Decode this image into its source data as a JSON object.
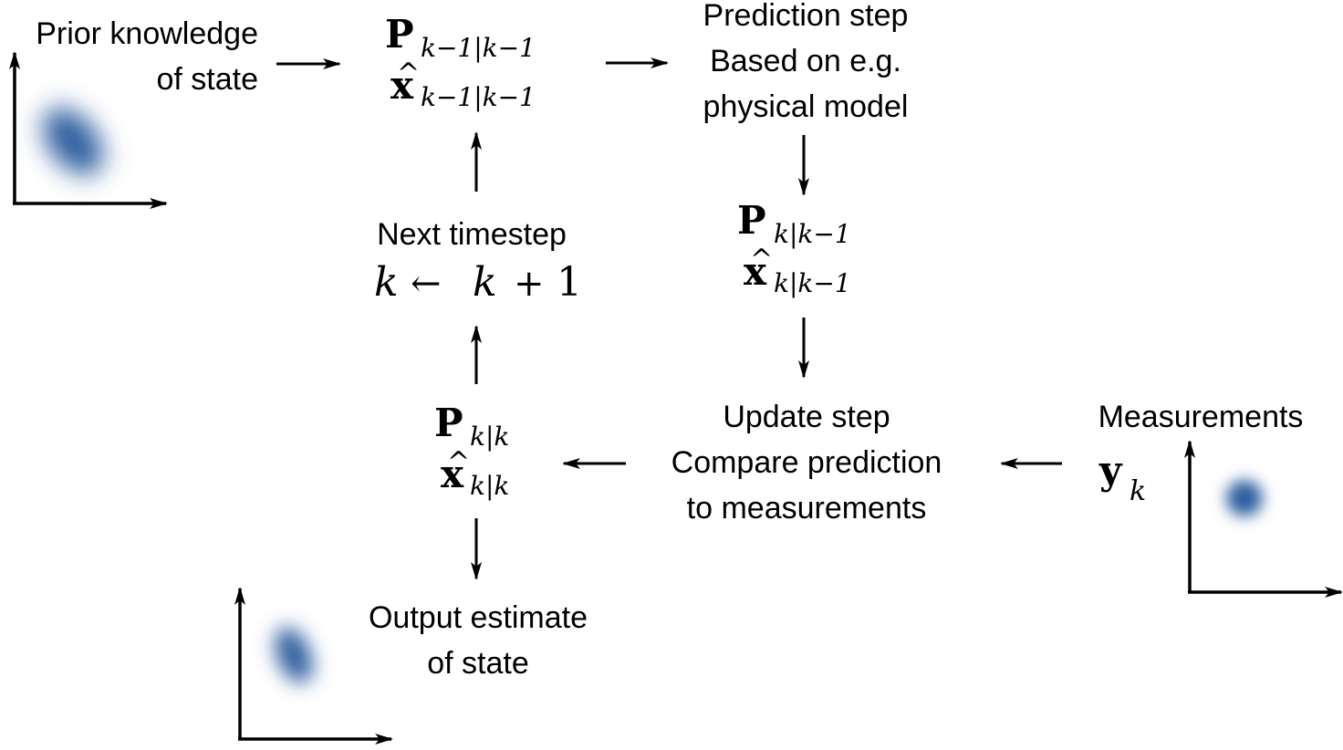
{
  "labels": {
    "prior_line1": "Prior knowledge",
    "prior_line2": "of state",
    "prediction_line1": "Prediction step",
    "prediction_line2": "Based on e.g.",
    "prediction_line3": "physical model",
    "next_line1": "Next timestep",
    "update_line1": "Update step",
    "update_line2": "Compare prediction",
    "update_line3": "to measurements",
    "measurements": "Measurements",
    "output_line1": "Output estimate",
    "output_line2": "of state"
  },
  "math": {
    "P": "P",
    "x": "x",
    "hat": "^",
    "y": "y",
    "sub_prev": "k−1|k−1",
    "sub_pred": "k|k−1",
    "sub_upd": "k|k",
    "sub_meas": "k",
    "timestep_k": "k",
    "timestep_arrow": "←",
    "timestep_k2": "k",
    "timestep_plus": "+",
    "timestep_one": "1"
  },
  "colors": {
    "blob": "#2f5f9f",
    "ink": "#000000"
  },
  "icons": {
    "arrow": "arrow-icon",
    "axes": "axes-icon",
    "gaussian": "gaussian-blob-icon"
  }
}
